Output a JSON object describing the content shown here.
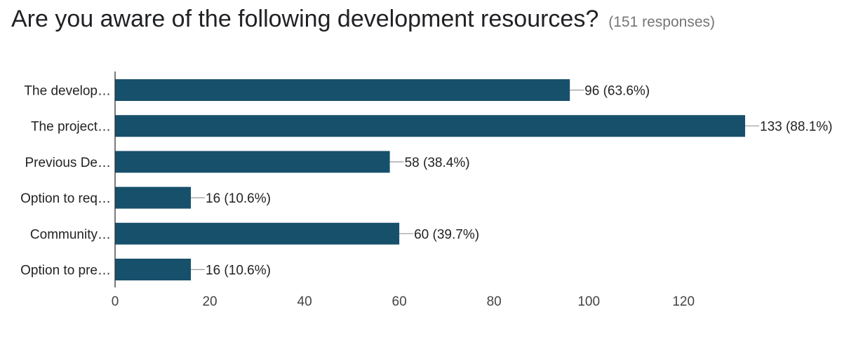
{
  "header": {
    "title": "Are you aware of the following development resources?",
    "responses": "(151 responses)"
  },
  "colors": {
    "bar": "#17506b",
    "axis": "#333333",
    "leader": "#999999"
  },
  "chart_data": {
    "type": "bar",
    "orientation": "horizontal",
    "categories": [
      "The develop…",
      "The project…",
      "Previous De…",
      "Option to req…",
      "Community…",
      "Option to pre…"
    ],
    "values": [
      96,
      133,
      58,
      16,
      60,
      16
    ],
    "value_labels": [
      "96 (63.6%)",
      "133 (88.1%)",
      "58 (38.4%)",
      "16 (10.6%)",
      "60 (39.7%)",
      "16 (10.6%)"
    ],
    "xlim": [
      0,
      133
    ],
    "xticks": [
      0,
      20,
      40,
      60,
      80,
      100,
      120
    ],
    "grid": false,
    "legend": "none"
  }
}
